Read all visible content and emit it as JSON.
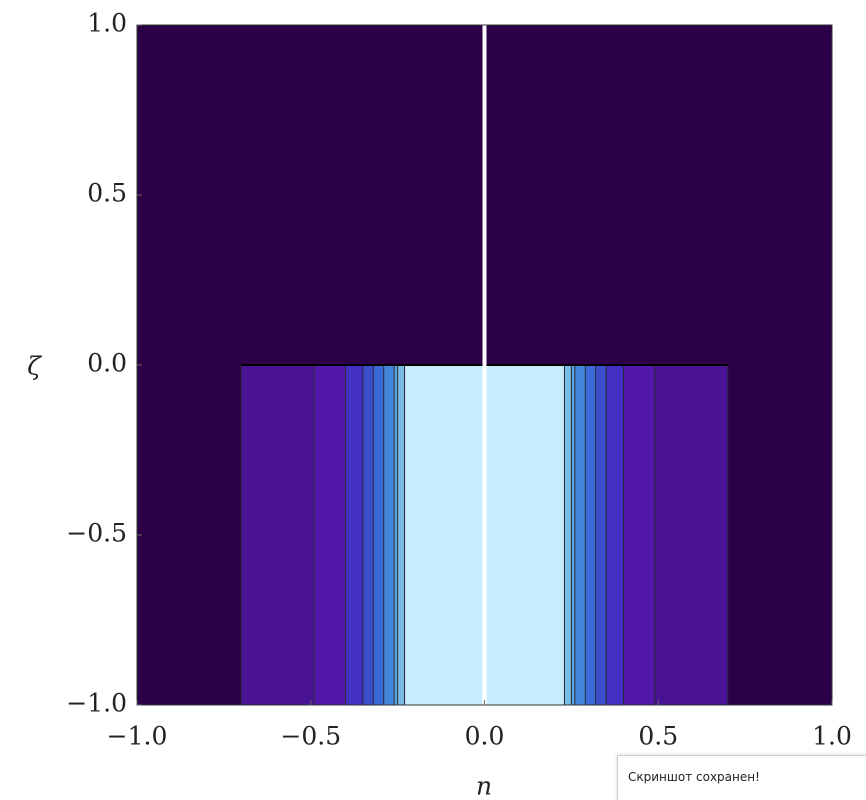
{
  "chart_data": {
    "type": "contour",
    "xlabel": "n",
    "ylabel": "ζ",
    "xlim": [
      -1,
      1
    ],
    "ylim": [
      -1,
      1
    ],
    "xticks": [
      {
        "value": -1,
        "label": "−1.0"
      },
      {
        "value": -0.5,
        "label": "−0.5"
      },
      {
        "value": 0,
        "label": "0.0"
      },
      0.5,
      {
        "value": 1,
        "label": "1.0"
      }
    ],
    "yticks": [
      {
        "value": -1,
        "label": "−1.0"
      },
      {
        "value": -0.5,
        "label": "−0.5"
      },
      {
        "value": 0,
        "label": "0.0"
      },
      0.5,
      {
        "value": 1,
        "label": "1.0"
      }
    ],
    "background_color": "#2c0047",
    "region_top": 0,
    "regions": [
      {
        "x0": -0.7,
        "x1": 0.7,
        "color": "#4a1396"
      },
      {
        "x0": -0.49,
        "x1": 0.49,
        "color": "#5318aa"
      },
      {
        "x0": -0.4,
        "x1": 0.4,
        "color": "#4231c0"
      },
      {
        "x0": -0.35,
        "x1": 0.35,
        "color": "#3b4fcc"
      },
      {
        "x0": -0.32,
        "x1": 0.32,
        "color": "#3b6ad6"
      },
      {
        "x0": -0.29,
        "x1": 0.29,
        "color": "#4486dc"
      },
      {
        "x0": -0.26,
        "x1": 0.26,
        "color": "#5ba3df"
      },
      {
        "x0": -0.25,
        "x1": 0.25,
        "color": "#79bde6"
      },
      {
        "x0": -0.23,
        "x1": 0.23,
        "color": "#c8ecfc"
      }
    ],
    "vline": {
      "x": 0,
      "color": "#ffffff"
    }
  },
  "toast": {
    "text": "Скриншот сохранен!"
  }
}
